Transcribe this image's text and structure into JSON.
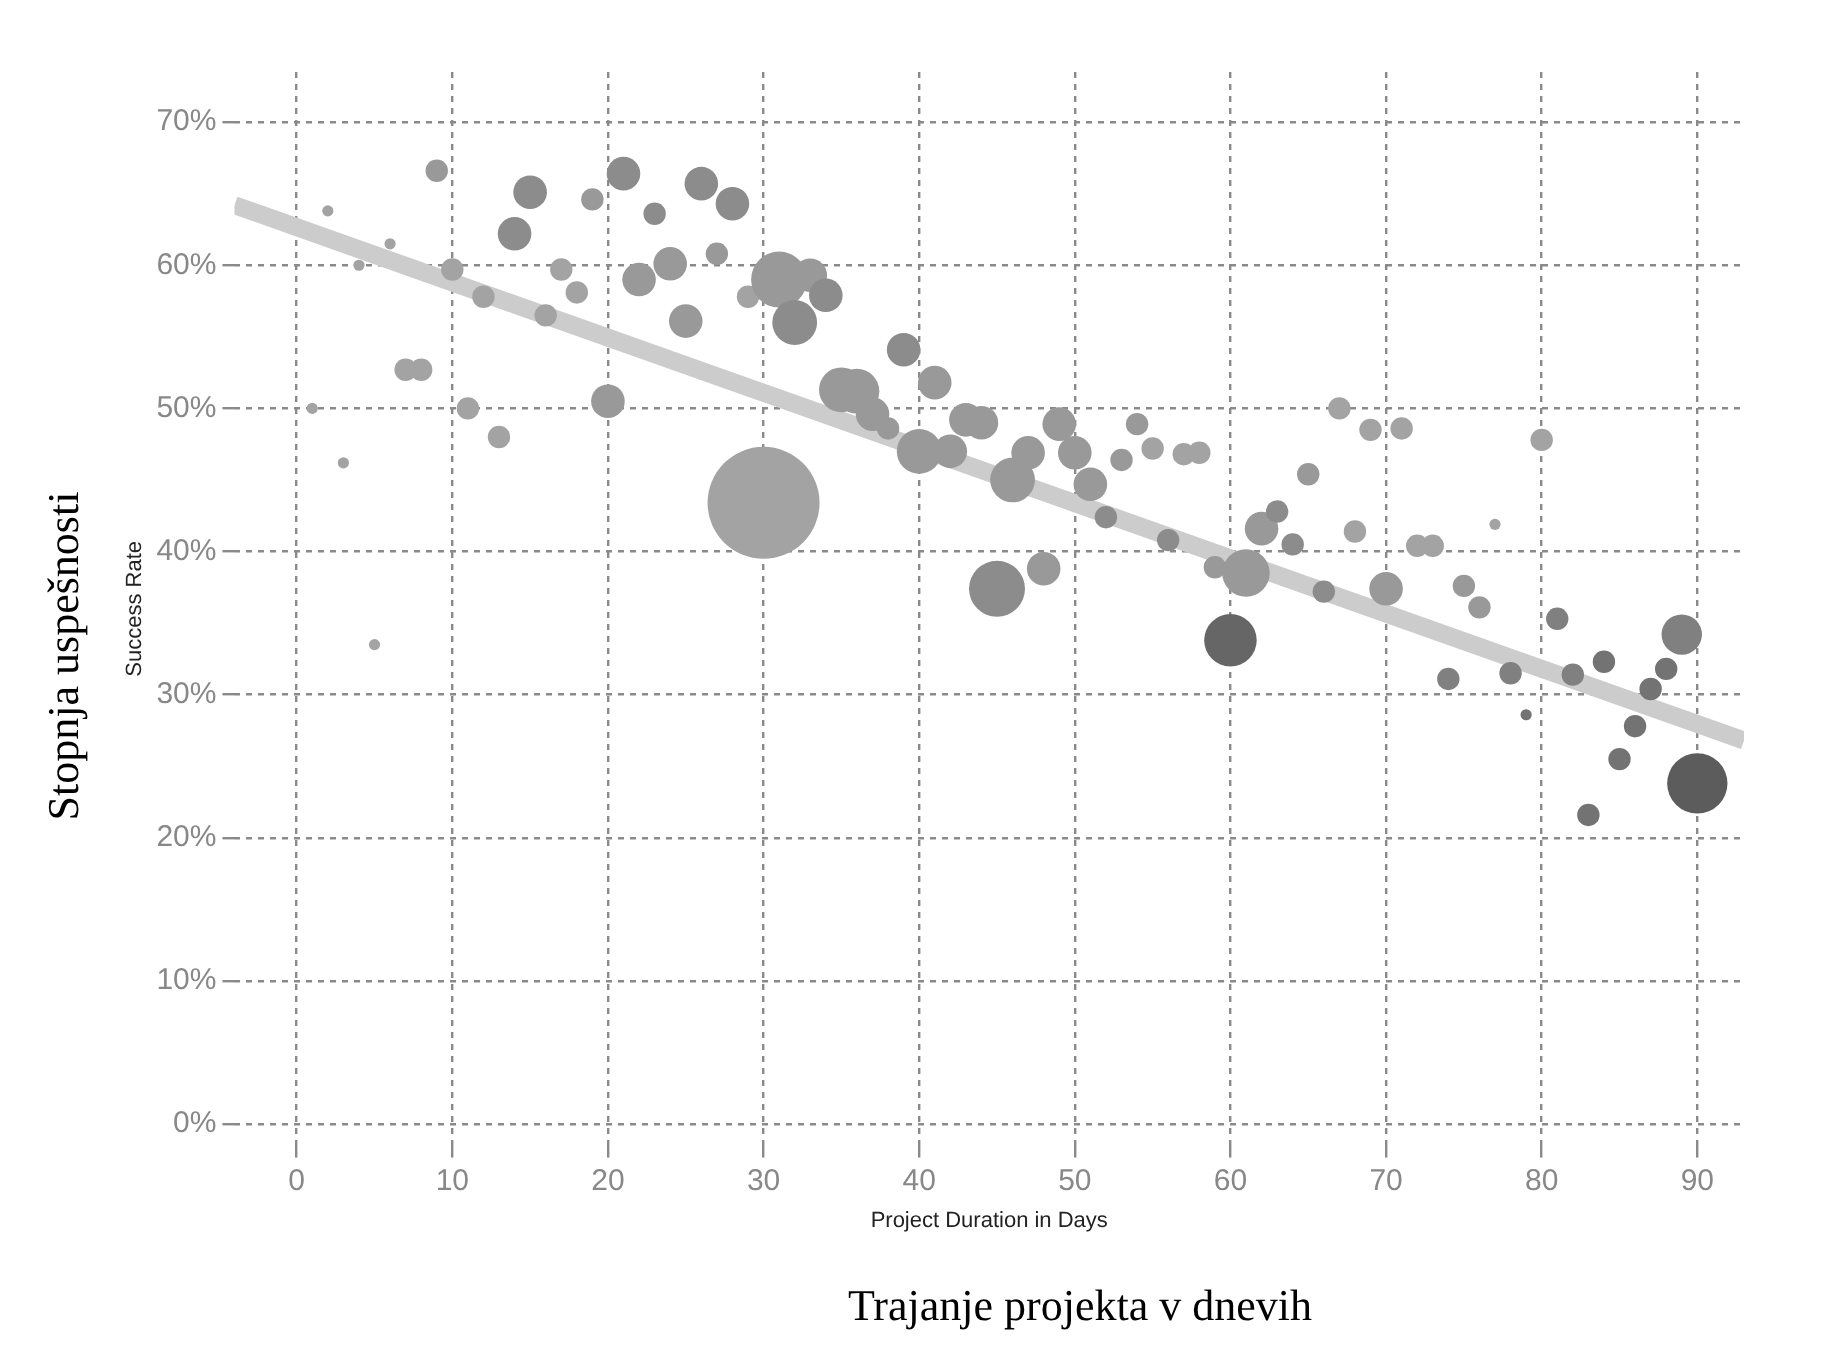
{
  "chart_data": {
    "type": "bubble",
    "xlabel": "Project Duration in Days",
    "ylabel": "Success Rate",
    "annotations": [
      "Stopnja uspešnosti",
      "Trajanje projekta v dnevih"
    ],
    "xlim": [
      -4,
      93
    ],
    "ylim": [
      -1.5,
      73.5
    ],
    "xticks": [
      0,
      10,
      20,
      30,
      40,
      50,
      60,
      70,
      80,
      90
    ],
    "yticks": [
      {
        "value": 0,
        "label": "0%"
      },
      {
        "value": 10,
        "label": "10%"
      },
      {
        "value": 20,
        "label": "20%"
      },
      {
        "value": 30,
        "label": "30%"
      },
      {
        "value": 40,
        "label": "40%"
      },
      {
        "value": 50,
        "label": "50%"
      },
      {
        "value": 60,
        "label": "60%"
      },
      {
        "value": 70,
        "label": "70%"
      }
    ],
    "grid": true,
    "series": [
      {
        "type": "line",
        "color": "#cccccc",
        "x": [
          -4,
          93
        ],
        "values": [
          64.2,
          26.8
        ]
      },
      {
        "x": [
          1,
          2,
          3,
          4,
          5,
          6,
          7,
          8,
          9,
          10,
          11,
          12,
          13,
          14,
          15,
          16,
          17,
          18,
          19,
          20,
          21,
          22,
          23,
          24,
          25,
          26,
          27,
          28,
          29,
          30,
          31,
          32,
          33,
          34,
          35,
          36,
          37,
          38,
          39,
          40,
          41,
          42,
          43,
          44,
          45,
          46,
          47,
          48,
          49,
          50,
          51,
          52,
          53,
          54,
          55,
          56,
          57,
          58,
          59,
          60,
          61,
          62,
          63,
          64,
          65,
          66,
          67,
          68,
          69,
          70,
          71,
          72,
          73,
          74,
          75,
          76,
          77,
          78,
          79,
          80,
          81,
          82,
          83,
          84,
          85,
          86,
          87,
          88,
          89,
          90
        ],
        "values": [
          50.0,
          63.8,
          46.2,
          60.0,
          33.5,
          61.5,
          52.7,
          52.7,
          66.6,
          59.7,
          50.0,
          57.8,
          48.0,
          62.2,
          65.1,
          56.5,
          59.7,
          58.1,
          64.6,
          50.5,
          66.4,
          59.0,
          63.6,
          60.1,
          56.1,
          65.7,
          60.8,
          64.3,
          57.8,
          43.4,
          59.0,
          56.0,
          59.3,
          57.9,
          51.3,
          51.2,
          49.6,
          48.6,
          54.1,
          47.0,
          51.8,
          47.0,
          49.2,
          49.0,
          37.4,
          45.0,
          46.9,
          38.8,
          48.9,
          46.9,
          44.7,
          42.4,
          46.4,
          48.9,
          47.2,
          40.8,
          46.8,
          46.9,
          38.9,
          33.8,
          38.5,
          41.6,
          42.8,
          40.5,
          45.4,
          37.2,
          50.0,
          41.4,
          48.5,
          37.4,
          48.6,
          40.4,
          40.4,
          31.1,
          37.6,
          36.1,
          41.9,
          31.5,
          28.6,
          47.8,
          35.3,
          31.4,
          21.6,
          32.3,
          25.5,
          27.8,
          30.4,
          31.8,
          34.2,
          23.8
        ],
        "sizes": [
          0.01,
          0.01,
          0.01,
          0.01,
          0.01,
          0.01,
          0.04,
          0.04,
          0.04,
          0.04,
          0.04,
          0.04,
          0.04,
          0.09,
          0.09,
          0.04,
          0.04,
          0.04,
          0.04,
          0.09,
          0.09,
          0.09,
          0.04,
          0.09,
          0.09,
          0.09,
          0.04,
          0.09,
          0.04,
          1,
          0.25,
          0.16,
          0.09,
          0.09,
          0.16,
          0.16,
          0.09,
          0.04,
          0.09,
          0.16,
          0.09,
          0.09,
          0.09,
          0.09,
          0.25,
          0.16,
          0.09,
          0.09,
          0.09,
          0.09,
          0.09,
          0.04,
          0.04,
          0.04,
          0.04,
          0.04,
          0.04,
          0.04,
          0.04,
          0.22,
          0.18,
          0.09,
          0.04,
          0.04,
          0.04,
          0.04,
          0.04,
          0.04,
          0.04,
          0.09,
          0.04,
          0.04,
          0.04,
          0.04,
          0.04,
          0.04,
          0.01,
          0.04,
          0.01,
          0.04,
          0.04,
          0.04,
          0.04,
          0.04,
          0.04,
          0.04,
          0.04,
          0.04,
          0.13,
          0.29
        ],
        "colors": [
          "#a3a3a3",
          "#a3a3a3",
          "#a3a3a3",
          "#a3a3a3",
          "#a3a3a3",
          "#a3a3a3",
          "#a3a3a3",
          "#a3a3a3",
          "#999999",
          "#a3a3a3",
          "#a3a3a3",
          "#a3a3a3",
          "#a3a3a3",
          "#8c8c8c",
          "#8c8c8c",
          "#a3a3a3",
          "#a3a3a3",
          "#a3a3a3",
          "#999999",
          "#999999",
          "#8c8c8c",
          "#999999",
          "#8c8c8c",
          "#999999",
          "#999999",
          "#8c8c8c",
          "#999999",
          "#8c8c8c",
          "#a3a3a3",
          "#a3a3a3",
          "#999999",
          "#8c8c8c",
          "#999999",
          "#8c8c8c",
          "#999999",
          "#999999",
          "#999999",
          "#999999",
          "#8c8c8c",
          "#999999",
          "#999999",
          "#999999",
          "#999999",
          "#999999",
          "#8c8c8c",
          "#999999",
          "#999999",
          "#999999",
          "#999999",
          "#999999",
          "#999999",
          "#8c8c8c",
          "#999999",
          "#999999",
          "#a3a3a3",
          "#8c8c8c",
          "#a3a3a3",
          "#a3a3a3",
          "#999999",
          "#666666",
          "#999999",
          "#999999",
          "#8c8c8c",
          "#8c8c8c",
          "#999999",
          "#8c8c8c",
          "#a3a3a3",
          "#a3a3a3",
          "#a3a3a3",
          "#999999",
          "#a3a3a3",
          "#a3a3a3",
          "#a3a3a3",
          "#808080",
          "#999999",
          "#999999",
          "#a3a3a3",
          "#808080",
          "#737373",
          "#a3a3a3",
          "#808080",
          "#808080",
          "#737373",
          "#737373",
          "#737373",
          "#737373",
          "#737373",
          "#737373",
          "#808080",
          "#5c5c5c"
        ]
      }
    ]
  }
}
